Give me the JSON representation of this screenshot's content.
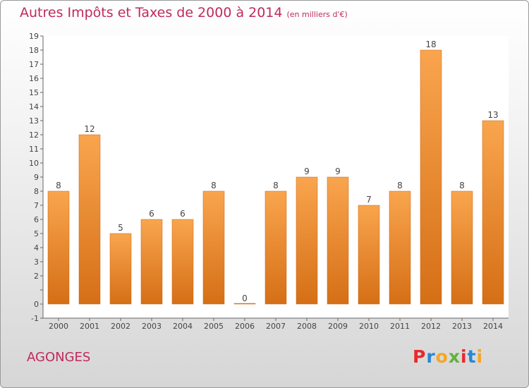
{
  "title": "Autres Impôts et Taxes de 2000 à 2014",
  "subtitle": "(en milliers d'€)",
  "commune": "AGONGES",
  "logo": {
    "letters": [
      "P",
      "r",
      "o",
      "x",
      "i",
      "t",
      "i"
    ],
    "colors": [
      "#e8292c",
      "#2a86d6",
      "#f6a623",
      "#61b23a",
      "#e8292c",
      "#2a86d6",
      "#f6a623"
    ]
  },
  "chart_data": {
    "type": "bar",
    "categories": [
      "2000",
      "2001",
      "2002",
      "2003",
      "2004",
      "2005",
      "2006",
      "2007",
      "2008",
      "2009",
      "2010",
      "2011",
      "2012",
      "2013",
      "2014"
    ],
    "values": [
      8,
      12,
      5,
      6,
      6,
      8,
      0,
      8,
      9,
      9,
      7,
      8,
      18,
      8,
      13
    ],
    "ylim": [
      -1,
      19
    ],
    "yticks": [
      -1,
      0,
      1,
      2,
      3,
      4,
      5,
      6,
      7,
      8,
      9,
      10,
      11,
      12,
      13,
      14,
      15,
      16,
      17,
      18,
      19
    ],
    "ytick_labels": [
      "-1",
      "0",
      "",
      "2",
      "3",
      "4",
      "5",
      "6",
      "7",
      "8",
      "9",
      "10",
      "11",
      "12",
      "13",
      "14",
      "15",
      "16",
      "17",
      "18",
      "19"
    ],
    "xlabel": "",
    "ylabel": "",
    "bar_color_top": "#f9a54e",
    "bar_color_bottom": "#d56f16",
    "grid": false
  }
}
